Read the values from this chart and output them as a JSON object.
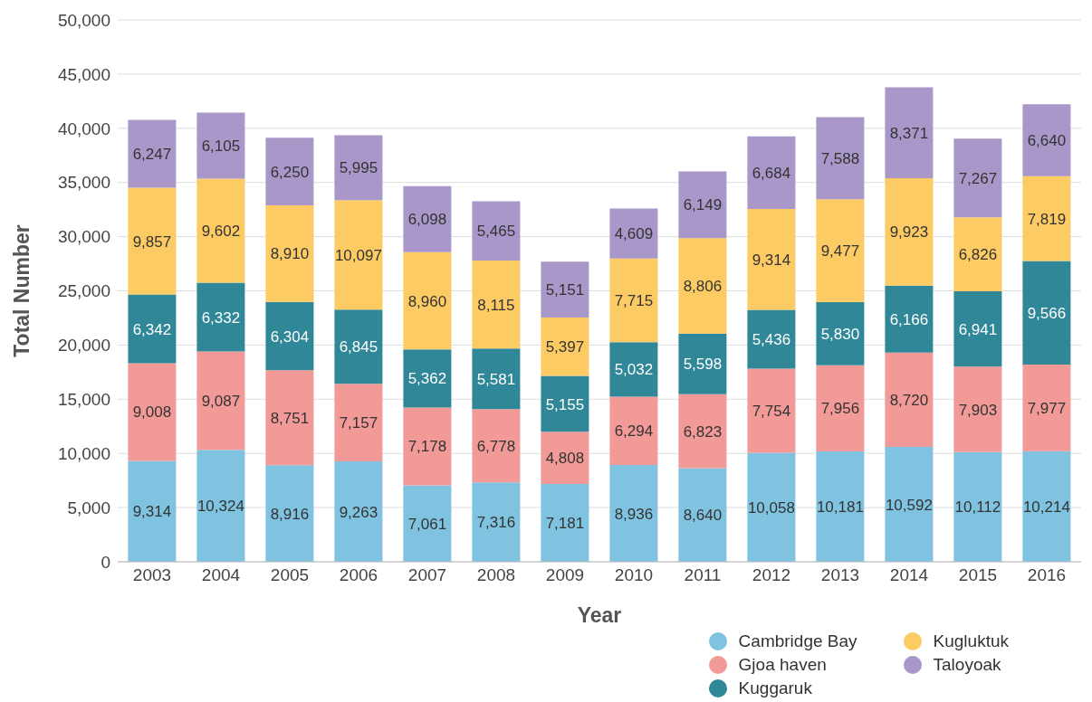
{
  "chart_data": {
    "type": "bar",
    "stacked": true,
    "xlabel": "Year",
    "ylabel": "Total Number",
    "categories": [
      "2003",
      "2004",
      "2005",
      "2006",
      "2007",
      "2008",
      "2009",
      "2010",
      "2011",
      "2012",
      "2013",
      "2014",
      "2015",
      "2016"
    ],
    "series": [
      {
        "name": "Cambridge Bay",
        "color": "#7fc3e0",
        "values": [
          9314,
          10324,
          8916,
          9263,
          7061,
          7316,
          7181,
          8936,
          8640,
          10058,
          10181,
          10592,
          10112,
          10214
        ],
        "value_labels": [
          "9,314",
          "10,324",
          "8,916",
          "9,263",
          "7,061",
          "7,316",
          "7,181",
          "8,936",
          "8,640",
          "10,058",
          "10,181",
          "10,592",
          "10,112",
          "10,214"
        ]
      },
      {
        "name": "Gjoa haven",
        "color": "#f19a97",
        "values": [
          9008,
          9087,
          8751,
          7157,
          7178,
          6778,
          4808,
          6294,
          6823,
          7754,
          7956,
          8720,
          7903,
          7977
        ],
        "value_labels": [
          "9,008",
          "9,087",
          "8,751",
          "7,157",
          "7,178",
          "6,778",
          "4,808",
          "6,294",
          "6,823",
          "7,754",
          "7,956",
          "8,720",
          "7,903",
          "7,977"
        ]
      },
      {
        "name": "Kuggaruk",
        "color": "#2f8797",
        "values": [
          6342,
          6332,
          6304,
          6845,
          5362,
          5581,
          5155,
          5032,
          5598,
          5436,
          5830,
          6166,
          6941,
          9566
        ],
        "value_labels": [
          "6,342",
          "6,332",
          "6,304",
          "6,845",
          "5,362",
          "5,581",
          "5,155",
          "5,032",
          "5,598",
          "5,436",
          "5,830",
          "6,166",
          "6,941",
          "9,566"
        ]
      },
      {
        "name": "Kugluktuk",
        "color": "#fdcb63",
        "values": [
          9857,
          9602,
          8910,
          10097,
          8960,
          8115,
          5397,
          7715,
          8806,
          9314,
          9477,
          9923,
          6826,
          7819
        ],
        "value_labels": [
          "9,857",
          "9,602",
          "8,910",
          "10,097",
          "8,960",
          "8,115",
          "5,397",
          "7,715",
          "8,806",
          "9,314",
          "9,477",
          "9,923",
          "6,826",
          "7,819"
        ]
      },
      {
        "name": "Taloyoak",
        "color": "#a897c8",
        "values": [
          6247,
          6105,
          6250,
          5995,
          6098,
          5465,
          5151,
          4609,
          6149,
          6684,
          7588,
          8371,
          7267,
          6640
        ],
        "value_labels": [
          "6,247",
          "6,105",
          "6,250",
          "5,995",
          "6,098",
          "5,465",
          "5,151",
          "4,609",
          "6,149",
          "6,684",
          "7,588",
          "8,371",
          "7,267",
          "6,640"
        ]
      }
    ],
    "ylim": [
      0,
      50000
    ],
    "yticks": [
      0,
      {
        "value": 5000,
        "label": "5,000"
      },
      {
        "value": 10000,
        "label": "10,000"
      },
      {
        "value": 15000,
        "label": "15,000"
      },
      {
        "value": 20000,
        "label": "20,000"
      },
      {
        "value": 25000,
        "label": "25,000"
      },
      {
        "value": 30000,
        "label": "30,000"
      },
      {
        "value": 35000,
        "label": "35,000"
      },
      {
        "value": 40000,
        "label": "40,000"
      },
      {
        "value": 45000,
        "label": "45,000"
      },
      {
        "value": 50000,
        "label": "50,000"
      }
    ],
    "grid": "y",
    "legend": "bottom right"
  }
}
